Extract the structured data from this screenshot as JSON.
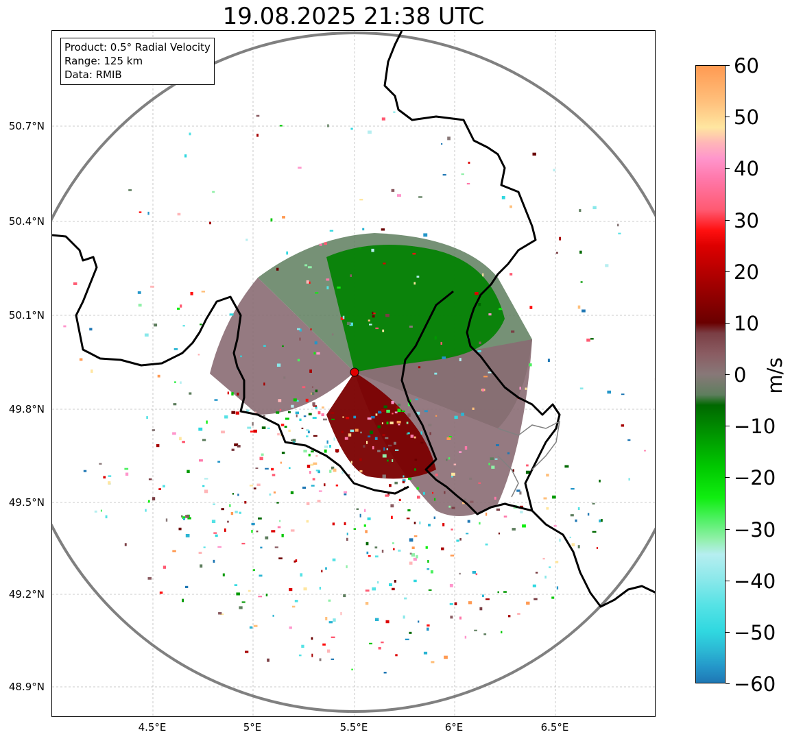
{
  "title": "19.08.2025 21:38 UTC",
  "info": {
    "product": "Product: 0.5° Radial Velocity",
    "range": "Range: 125 km",
    "source": "Data: RMIB"
  },
  "lat_ticks": [
    "50.7°N",
    "50.4°N",
    "50.1°N",
    "49.8°N",
    "49.5°N",
    "49.2°N",
    "48.9°N"
  ],
  "lon_ticks": [
    "4.5°E",
    "5°E",
    "5.5°E",
    "6°E",
    "6.5°E"
  ],
  "colorbar": {
    "unit": "m/s",
    "min": -60,
    "max": 60,
    "ticks": [
      "60",
      "50",
      "40",
      "30",
      "20",
      "10",
      "0",
      "−10",
      "−20",
      "−30",
      "−40",
      "−50",
      "−60"
    ],
    "colors": [
      {
        "v": -60,
        "c": "#1f77b4"
      },
      {
        "v": -57,
        "c": "#2496c9"
      },
      {
        "v": -54,
        "c": "#2bb5d3"
      },
      {
        "v": -50,
        "c": "#30d8e0"
      },
      {
        "v": -45,
        "c": "#55e2e5"
      },
      {
        "v": -40,
        "c": "#8ae8ea"
      },
      {
        "v": -35,
        "c": "#b6eef0"
      },
      {
        "v": -32,
        "c": "#90f0a8"
      },
      {
        "v": -28,
        "c": "#4cf060"
      },
      {
        "v": -24,
        "c": "#10ee10"
      },
      {
        "v": -18,
        "c": "#00c800"
      },
      {
        "v": -12,
        "c": "#009800"
      },
      {
        "v": -6,
        "c": "#006800"
      },
      {
        "v": -4,
        "c": "#5e7e5e"
      },
      {
        "v": 0,
        "c": "#887878"
      },
      {
        "v": 4,
        "c": "#8a5c62"
      },
      {
        "v": 8,
        "c": "#7a3e44"
      },
      {
        "v": 10,
        "c": "#6a0000"
      },
      {
        "v": 18,
        "c": "#a60000"
      },
      {
        "v": 25,
        "c": "#dd0000"
      },
      {
        "v": 28,
        "c": "#ff1010"
      },
      {
        "v": 32,
        "c": "#ff5a72"
      },
      {
        "v": 38,
        "c": "#ff78aa"
      },
      {
        "v": 42,
        "c": "#ff96cc"
      },
      {
        "v": 45,
        "c": "#ffb6b8"
      },
      {
        "v": 48,
        "c": "#ffe6a0"
      },
      {
        "v": 53,
        "c": "#ffc07c"
      },
      {
        "v": 60,
        "c": "#ff9a52"
      }
    ]
  },
  "radar": {
    "site_lat": 49.91,
    "site_lon": 5.5,
    "marker_color": "#e00000",
    "range_ring_color": "#808080",
    "border_color": "#000000"
  }
}
